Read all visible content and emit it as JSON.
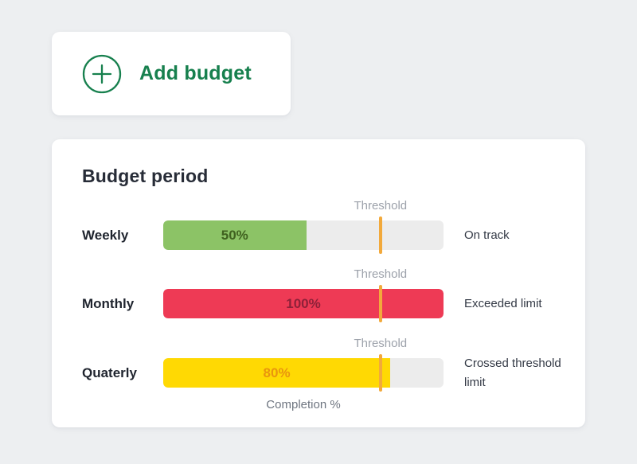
{
  "add_budget": {
    "label": "Add budget",
    "accent_color": "#17804e",
    "icon": "plus-circle-icon"
  },
  "budget_card": {
    "title": "Budget period",
    "threshold_label": "Threshold",
    "axis_label": "Completion %",
    "threshold_pct": 77.5,
    "colors": {
      "track": "#ececec",
      "threshold_marker": "#f2a93b"
    },
    "rows": [
      {
        "period": "Weekly",
        "value_label": "50%",
        "fill_pct": 51,
        "status": "On track",
        "bar_color": "#8cc366",
        "value_color": "#3f611f"
      },
      {
        "period": "Monthly",
        "value_label": "100%",
        "fill_pct": 100,
        "status": "Exceeded limit",
        "bar_color": "#ee3a55",
        "value_color": "#8e2139"
      },
      {
        "period": "Quaterly",
        "value_label": "80%",
        "fill_pct": 81,
        "status": "Crossed threshold limit",
        "bar_color": "#ffd903",
        "value_color": "#e9950e"
      }
    ]
  }
}
